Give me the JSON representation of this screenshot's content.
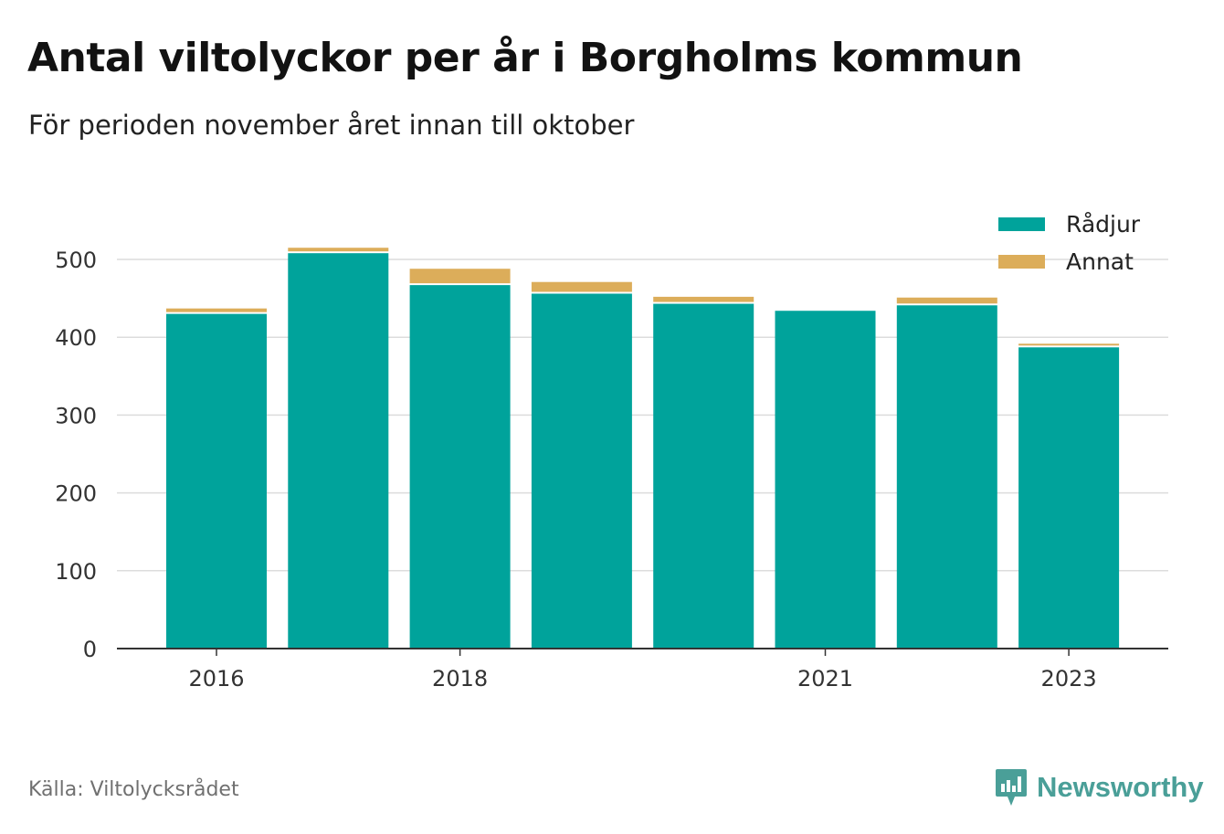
{
  "title": "Antal viltolyckor per år i Borgholms kommun",
  "subtitle": "För perioden november året innan till oktober",
  "source": "Källa: Viltolycksrådet",
  "brand": "Newsworthy",
  "colors": {
    "radjur": "#00a39b",
    "annat": "#dcad5a",
    "grid": "#dcdcdc",
    "axis": "#333333",
    "brand": "#4a9f98"
  },
  "chart_data": {
    "type": "bar",
    "stacked": true,
    "categories": [
      "2016",
      "2017",
      "2018",
      "2019",
      "2020",
      "2021",
      "2022",
      "2023"
    ],
    "x_tick_labels": [
      "2016",
      "",
      "2018",
      "",
      "",
      "2021",
      "",
      "2023"
    ],
    "series": [
      {
        "name": "Rådjur",
        "color": "#00a39b",
        "values": [
          430,
          508,
          467,
          456,
          443,
          434,
          441,
          387
        ]
      },
      {
        "name": "Annat",
        "color": "#dcad5a",
        "values": [
          7,
          7,
          21,
          15,
          9,
          0,
          10,
          3
        ]
      }
    ],
    "yticks": [
      0,
      100,
      200,
      300,
      400,
      500
    ],
    "ylim": [
      0,
      530
    ],
    "grid": true,
    "legend_position": "top-right"
  }
}
